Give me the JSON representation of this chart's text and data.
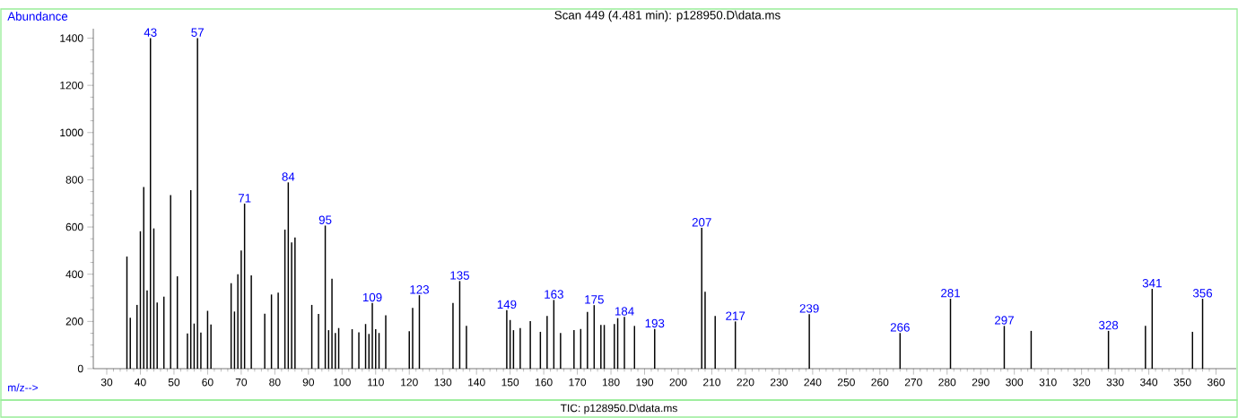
{
  "chart_data": {
    "type": "bar",
    "title": "Scan 449 (4.481 min): p128950.D\\data.ms",
    "xlabel": "m/z-->",
    "ylabel": "Abundance",
    "color": "#000000",
    "x": [
      36,
      37,
      39,
      40,
      41,
      42,
      43,
      44,
      45,
      47,
      49,
      51,
      54,
      55,
      56,
      57,
      58,
      60,
      61,
      67,
      68,
      69,
      70,
      71,
      73,
      77,
      79,
      81,
      83,
      84,
      85,
      86,
      91,
      93,
      95,
      96,
      97,
      98,
      99,
      103,
      105,
      107,
      108,
      109,
      110,
      111,
      113,
      120,
      121,
      123,
      133,
      135,
      137,
      149,
      150,
      151,
      153,
      156,
      159,
      161,
      163,
      165,
      169,
      171,
      173,
      175,
      177,
      178,
      181,
      182,
      184,
      187,
      193,
      207,
      208,
      211,
      217,
      239,
      266,
      281,
      297,
      305,
      328,
      339,
      341,
      353,
      356
    ],
    "values": [
      475,
      216,
      270,
      582,
      769,
      331,
      1400,
      594,
      280,
      305,
      735,
      391,
      149,
      756,
      191,
      1400,
      153,
      245,
      187,
      362,
      242,
      400,
      501,
      699,
      395,
      233,
      314,
      322,
      589,
      789,
      535,
      556,
      270,
      232,
      606,
      163,
      381,
      151,
      172,
      167,
      154,
      189,
      147,
      278,
      167,
      151,
      226,
      159,
      257,
      311,
      278,
      371,
      181,
      248,
      206,
      163,
      172,
      201,
      156,
      223,
      291,
      151,
      163,
      168,
      240,
      269,
      185,
      185,
      189,
      214,
      219,
      181,
      168,
      596,
      326,
      223,
      200,
      231,
      151,
      296,
      181,
      160,
      160,
      181,
      338,
      156,
      296
    ],
    "xlim": [
      26,
      366
    ],
    "ylim": [
      0,
      1440
    ],
    "xticks": [
      30,
      40,
      50,
      60,
      70,
      80,
      90,
      100,
      110,
      120,
      130,
      140,
      150,
      160,
      170,
      180,
      190,
      200,
      210,
      220,
      230,
      240,
      250,
      260,
      270,
      280,
      290,
      300,
      310,
      320,
      330,
      340,
      350,
      360
    ],
    "yticks": [
      0,
      200,
      400,
      600,
      800,
      1000,
      1200,
      1400
    ],
    "annotations": [
      {
        "text": "43",
        "x": 43,
        "y": 1400
      },
      {
        "text": "57",
        "x": 57,
        "y": 1400
      },
      {
        "text": "71",
        "x": 71,
        "y": 699
      },
      {
        "text": "84",
        "x": 84,
        "y": 789
      },
      {
        "text": "95",
        "x": 95,
        "y": 606
      },
      {
        "text": "109",
        "x": 109,
        "y": 278
      },
      {
        "text": "123",
        "x": 123,
        "y": 311
      },
      {
        "text": "135",
        "x": 135,
        "y": 371
      },
      {
        "text": "149",
        "x": 149,
        "y": 248
      },
      {
        "text": "163",
        "x": 163,
        "y": 291
      },
      {
        "text": "175",
        "x": 175,
        "y": 269
      },
      {
        "text": "184",
        "x": 184,
        "y": 219
      },
      {
        "text": "193",
        "x": 193,
        "y": 168
      },
      {
        "text": "207",
        "x": 207,
        "y": 596
      },
      {
        "text": "217",
        "x": 217,
        "y": 200
      },
      {
        "text": "239",
        "x": 239,
        "y": 231
      },
      {
        "text": "266",
        "x": 266,
        "y": 151
      },
      {
        "text": "281",
        "x": 281,
        "y": 296
      },
      {
        "text": "297",
        "x": 297,
        "y": 181
      },
      {
        "text": "328",
        "x": 328,
        "y": 160
      },
      {
        "text": "341",
        "x": 341,
        "y": 338
      },
      {
        "text": "356",
        "x": 356,
        "y": 296
      },
      "TIC: p128950.D\\data.ms"
    ]
  }
}
